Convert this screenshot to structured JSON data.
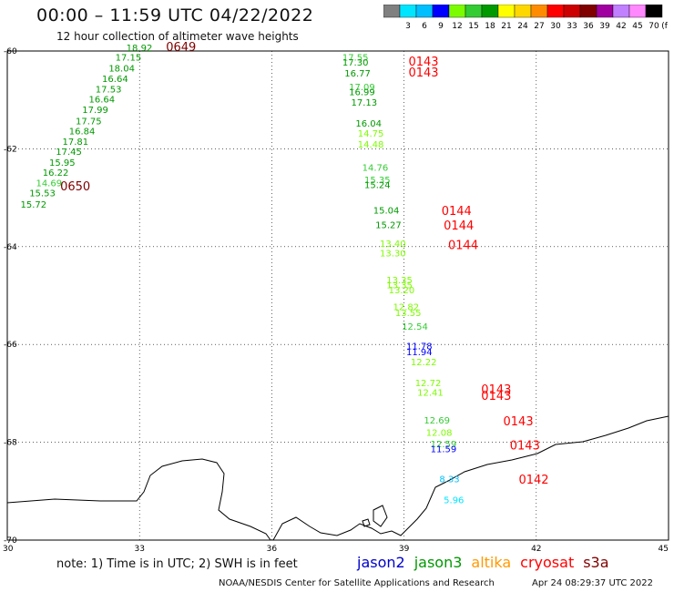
{
  "header": {
    "title": "00:00 – 11:59 UTC 04/22/2022",
    "subtitle": "12 hour collection of altimeter wave heights"
  },
  "colorbar": {
    "unit": "(ft)",
    "bins": [
      {
        "color": "#808080",
        "label": ""
      },
      {
        "color": "#00e5ff",
        "label": "3"
      },
      {
        "color": "#00bfff",
        "label": "6"
      },
      {
        "color": "#0000ff",
        "label": "9"
      },
      {
        "color": "#7cfc00",
        "label": "12"
      },
      {
        "color": "#33cc33",
        "label": "15"
      },
      {
        "color": "#009900",
        "label": "18"
      },
      {
        "color": "#ffff00",
        "label": "21"
      },
      {
        "color": "#ffd700",
        "label": "24"
      },
      {
        "color": "#ff8c00",
        "label": "27"
      },
      {
        "color": "#ff0000",
        "label": "30"
      },
      {
        "color": "#cc0000",
        "label": "33"
      },
      {
        "color": "#800000",
        "label": "36"
      },
      {
        "color": "#a000a0",
        "label": "39"
      },
      {
        "color": "#c080ff",
        "label": "42"
      },
      {
        "color": "#ff88ff",
        "label": "45"
      },
      {
        "color": "#000000",
        "label": "70"
      }
    ]
  },
  "axes": {
    "lat_labels": [
      "-60",
      "-62",
      "-64",
      "-66",
      "-68",
      "-70"
    ],
    "lon_labels": [
      "30",
      "33",
      "36",
      "39",
      "42",
      "45"
    ]
  },
  "tracks": [
    {
      "pass_labels": [
        {
          "text": "0649",
          "lon": 33.6,
          "lat": -60.0,
          "color": "#800000"
        },
        {
          "text": "0650",
          "lon": 31.2,
          "lat": -62.85,
          "color": "#800000"
        }
      ],
      "readings": [
        {
          "v": "18.92",
          "lon": 32.7,
          "lat": -60.0,
          "color": "#009900"
        },
        {
          "v": "17.15",
          "lon": 32.45,
          "lat": -60.2,
          "color": "#009900"
        },
        {
          "v": "18.04",
          "lon": 32.3,
          "lat": -60.42,
          "color": "#009900"
        },
        {
          "v": "16.64",
          "lon": 32.15,
          "lat": -60.63,
          "color": "#009900"
        },
        {
          "v": "17.53",
          "lon": 32.0,
          "lat": -60.85,
          "color": "#009900"
        },
        {
          "v": "16.64",
          "lon": 31.85,
          "lat": -61.05,
          "color": "#009900"
        },
        {
          "v": "17.99",
          "lon": 31.7,
          "lat": -61.27,
          "color": "#009900"
        },
        {
          "v": "17.75",
          "lon": 31.55,
          "lat": -61.5,
          "color": "#009900"
        },
        {
          "v": "16.84",
          "lon": 31.4,
          "lat": -61.7,
          "color": "#009900"
        },
        {
          "v": "17.81",
          "lon": 31.25,
          "lat": -61.92,
          "color": "#009900"
        },
        {
          "v": "17.45",
          "lon": 31.1,
          "lat": -62.12,
          "color": "#009900"
        },
        {
          "v": "15.95",
          "lon": 30.95,
          "lat": -62.35,
          "color": "#009900"
        },
        {
          "v": "16.22",
          "lon": 30.8,
          "lat": -62.55,
          "color": "#009900"
        },
        {
          "v": "14.69",
          "lon": 30.65,
          "lat": -62.77,
          "color": "#33cc33"
        },
        {
          "v": "15.53",
          "lon": 30.5,
          "lat": -62.97,
          "color": "#009900"
        },
        {
          "v": "15.72",
          "lon": 30.3,
          "lat": -63.2,
          "color": "#009900"
        }
      ]
    },
    {
      "pass_labels": [
        {
          "text": "0143",
          "lon": 39.1,
          "lat": -60.3,
          "color": "#ff0000"
        },
        {
          "text": "0143",
          "lon": 39.1,
          "lat": -60.52,
          "color": "#ff0000"
        },
        {
          "text": "0144",
          "lon": 39.85,
          "lat": -63.35,
          "color": "#ff0000"
        },
        {
          "text": "0144",
          "lon": 39.9,
          "lat": -63.65,
          "color": "#ff0000"
        },
        {
          "text": "0144",
          "lon": 40.0,
          "lat": -64.05,
          "color": "#ff0000"
        },
        {
          "text": "0143",
          "lon": 40.75,
          "lat": -67.0,
          "color": "#ff0000"
        },
        {
          "text": "0143",
          "lon": 40.75,
          "lat": -67.13,
          "color": "#ff0000"
        },
        {
          "text": "0143",
          "lon": 41.25,
          "lat": -67.65,
          "color": "#ff0000"
        },
        {
          "text": "0143",
          "lon": 41.4,
          "lat": -68.15,
          "color": "#ff0000"
        },
        {
          "text": "0142",
          "lon": 41.6,
          "lat": -68.85,
          "color": "#ff0000"
        }
      ],
      "readings": [
        {
          "v": "17.55",
          "lon": 37.6,
          "lat": -60.2,
          "color": "#33cc33"
        },
        {
          "v": "17.30",
          "lon": 37.6,
          "lat": -60.3,
          "color": "#009900"
        },
        {
          "v": "16.77",
          "lon": 37.65,
          "lat": -60.52,
          "color": "#009900"
        },
        {
          "v": "17.09",
          "lon": 37.75,
          "lat": -60.8,
          "color": "#33cc33"
        },
        {
          "v": "16.99",
          "lon": 37.75,
          "lat": -60.9,
          "color": "#009900"
        },
        {
          "v": "17.13",
          "lon": 37.8,
          "lat": -61.12,
          "color": "#009900"
        },
        {
          "v": "16.04",
          "lon": 37.9,
          "lat": -61.55,
          "color": "#009900"
        },
        {
          "v": "14.75",
          "lon": 37.95,
          "lat": -61.75,
          "color": "#7cfc00"
        },
        {
          "v": "14.48",
          "lon": 37.95,
          "lat": -61.97,
          "color": "#7cfc00"
        },
        {
          "v": "14.76",
          "lon": 38.05,
          "lat": -62.45,
          "color": "#33cc33"
        },
        {
          "v": "15.35",
          "lon": 38.1,
          "lat": -62.7,
          "color": "#33cc33"
        },
        {
          "v": "15.24",
          "lon": 38.1,
          "lat": -62.8,
          "color": "#009900"
        },
        {
          "v": "15.04",
          "lon": 38.3,
          "lat": -63.32,
          "color": "#009900"
        },
        {
          "v": "15.27",
          "lon": 38.35,
          "lat": -63.62,
          "color": "#009900"
        },
        {
          "v": "13.40",
          "lon": 38.45,
          "lat": -64.0,
          "color": "#7cfc00"
        },
        {
          "v": "13.30",
          "lon": 38.45,
          "lat": -64.2,
          "color": "#7cfc00"
        },
        {
          "v": "13.35",
          "lon": 38.6,
          "lat": -64.75,
          "color": "#7cfc00"
        },
        {
          "v": "13.35",
          "lon": 38.6,
          "lat": -64.85,
          "color": "#7cfc00"
        },
        {
          "v": "13.20",
          "lon": 38.65,
          "lat": -64.95,
          "color": "#7cfc00"
        },
        {
          "v": "12.82",
          "lon": 38.75,
          "lat": -65.3,
          "color": "#7cfc00"
        },
        {
          "v": "13.55",
          "lon": 38.8,
          "lat": -65.42,
          "color": "#7cfc00"
        },
        {
          "v": "12.54",
          "lon": 38.95,
          "lat": -65.7,
          "color": "#33cc33"
        },
        {
          "v": "11.78",
          "lon": 39.05,
          "lat": -66.1,
          "color": "#0000ff"
        },
        {
          "v": "11.94",
          "lon": 39.05,
          "lat": -66.22,
          "color": "#0000ff"
        },
        {
          "v": "12.22",
          "lon": 39.15,
          "lat": -66.42,
          "color": "#7cfc00"
        },
        {
          "v": "12.72",
          "lon": 39.25,
          "lat": -66.85,
          "color": "#7cfc00"
        },
        {
          "v": "12.41",
          "lon": 39.3,
          "lat": -67.05,
          "color": "#7cfc00"
        },
        {
          "v": "12.69",
          "lon": 39.45,
          "lat": -67.62,
          "color": "#33cc33"
        },
        {
          "v": "12.08",
          "lon": 39.5,
          "lat": -67.87,
          "color": "#7cfc00"
        },
        {
          "v": "12.59",
          "lon": 39.6,
          "lat": -68.1,
          "color": "#33cc33"
        },
        {
          "v": "11.59",
          "lon": 39.6,
          "lat": -68.2,
          "color": "#0000ff"
        },
        {
          "v": "8.33",
          "lon": 39.8,
          "lat": -68.82,
          "color": "#00bfff"
        },
        {
          "v": "5.96",
          "lon": 39.9,
          "lat": -69.25,
          "color": "#00e5ff"
        }
      ]
    }
  ],
  "footer": {
    "note": "note: 1) Time is in UTC; 2) SWH is in feet",
    "missions": [
      {
        "name": "jason2",
        "color": "#0000cc"
      },
      {
        "name": "jason3",
        "color": "#009900"
      },
      {
        "name": "altika",
        "color": "#ff9900"
      },
      {
        "name": "cryosat",
        "color": "#ff0000"
      },
      {
        "name": "s3a",
        "color": "#800000"
      }
    ],
    "credit": "NOAA/NESDIS Center for Satellite Applications and Research",
    "generated": "Apr 24 08:29:37 UTC 2022"
  }
}
